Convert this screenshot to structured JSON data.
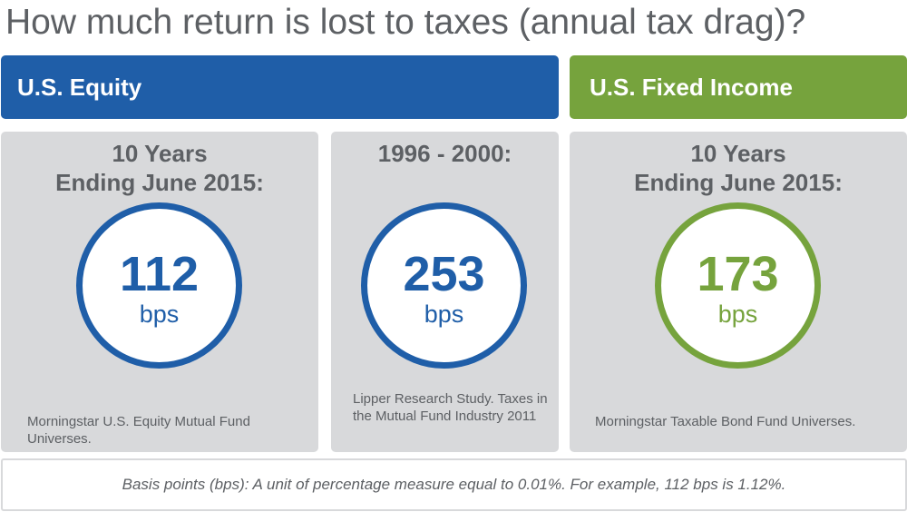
{
  "title": "How much return is lost to taxes (annual tax drag)?",
  "banners": {
    "equity": "U.S. Equity",
    "fixed_income": "U.S. Fixed Income"
  },
  "colors": {
    "equity_blue": "#1f5ea8",
    "fixed_income_green": "#76a33d",
    "card_gray": "#d8d9db",
    "text_gray": "#5d6064"
  },
  "cards": [
    {
      "heading_line1": "10 Years",
      "heading_line2": "Ending June 2015:",
      "value": "112",
      "unit": "bps",
      "source": "Morningstar U.S. Equity Mutual Fund Universes."
    },
    {
      "heading_line1": "1996 - 2000:",
      "value": "253",
      "unit": "bps",
      "source": "Lipper Research Study. Taxes in the Mutual Fund Industry 2011"
    },
    {
      "heading_line1": "10 Years",
      "heading_line2": "Ending June 2015:",
      "value": "173",
      "unit": "bps",
      "source": "Morningstar Taxable Bond Fund Universes."
    }
  ],
  "footnote": "Basis points (bps): A unit of percentage measure equal to 0.01%. For example, 112 bps is 1.12%."
}
